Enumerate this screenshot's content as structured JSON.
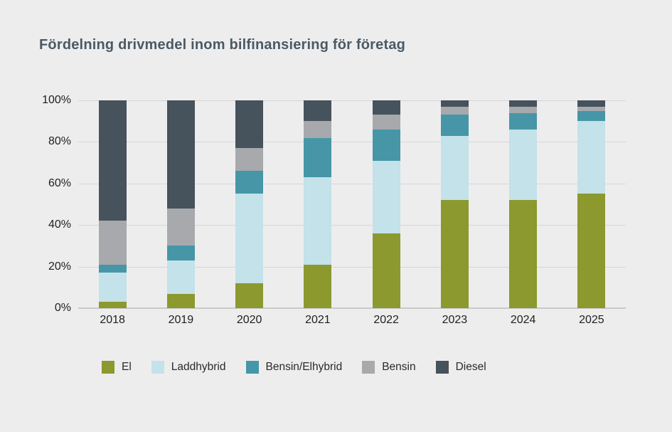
{
  "title": "Fördelning drivmedel inom bilfinansiering för företag",
  "colors": {
    "background": "#EEEDEE",
    "title_text": "#4A5A64",
    "axis_text": "#1F1F1F",
    "gridline": "#D6D6D8"
  },
  "chart_data": {
    "type": "bar",
    "stacked": true,
    "percent": true,
    "title": "Fördelning drivmedel inom bilfinansiering för företag",
    "xlabel": "",
    "ylabel": "",
    "ylim": [
      0,
      100
    ],
    "grid": true,
    "legend_position": "bottom",
    "y_ticks": [
      "0%",
      "20%",
      "40%",
      "60%",
      "80%",
      "100%"
    ],
    "y_tick_values": [
      0,
      20,
      40,
      60,
      80,
      100
    ],
    "categories": [
      "2018",
      "2019",
      "2020",
      "2021",
      "2022",
      "2023",
      "2024",
      "2025"
    ],
    "series": [
      {
        "name": "El",
        "color": "#8B992E",
        "values": [
          3,
          7,
          12,
          21,
          36,
          52,
          52,
          55
        ]
      },
      {
        "name": "Laddhybrid",
        "color": "#C3E2E9",
        "values": [
          14,
          16,
          43,
          42,
          35,
          31,
          34,
          35
        ]
      },
      {
        "name": "Bensin/Elhybrid",
        "color": "#4696A8",
        "values": [
          4,
          7,
          11,
          19,
          15,
          10,
          8,
          5
        ]
      },
      {
        "name": "Bensin",
        "color": "#A7A9AC",
        "values": [
          21,
          18,
          11,
          8,
          7,
          4,
          3,
          2
        ]
      },
      {
        "name": "Diesel",
        "color": "#46525C",
        "values": [
          58,
          52,
          23,
          10,
          7,
          3,
          3,
          3
        ]
      }
    ]
  }
}
